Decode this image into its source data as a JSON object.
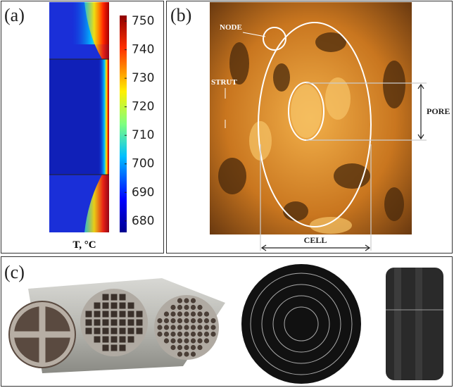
{
  "panels": [
    {
      "label": "(a)",
      "colorbar": {
        "lim": [
          676,
          752
        ],
        "ticks": [
          680,
          690,
          700,
          710,
          720,
          730,
          740,
          750
        ],
        "title": "T, °C"
      }
    },
    {
      "label": "(b)",
      "annotations": [
        "NODE",
        "STRUT",
        "PORE",
        "CELL"
      ]
    },
    {
      "label": "(c)"
    }
  ]
}
